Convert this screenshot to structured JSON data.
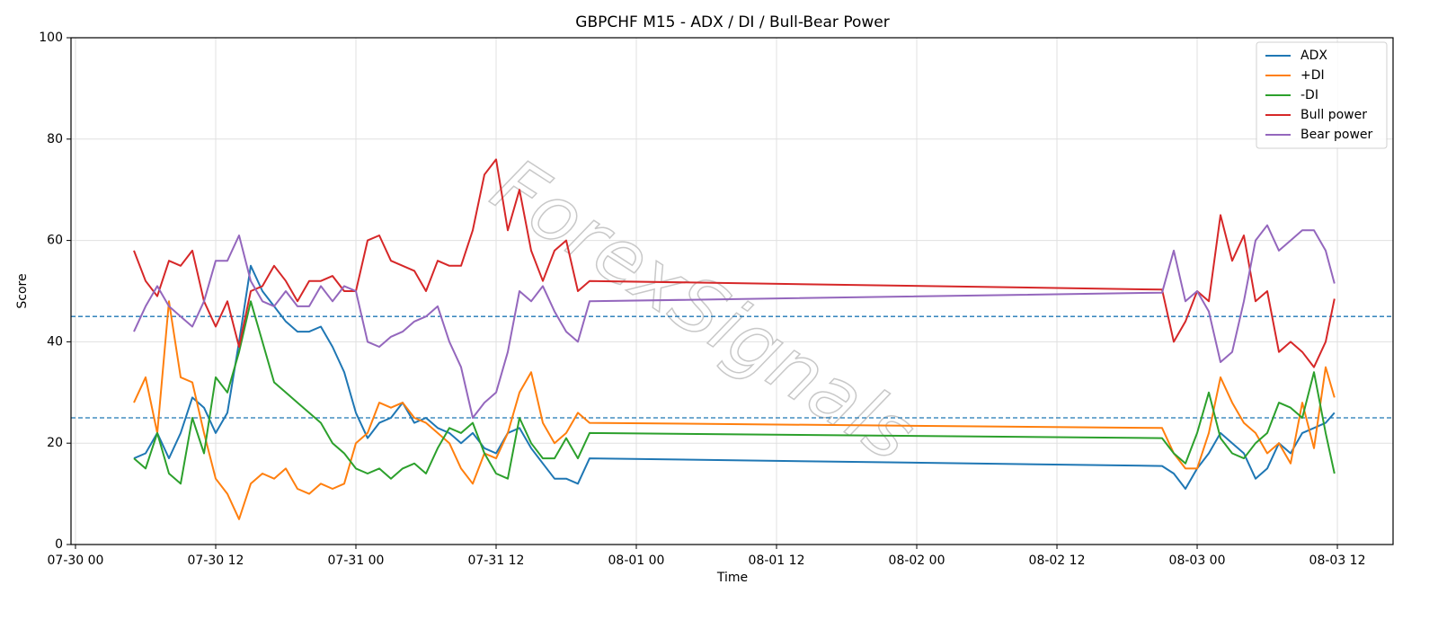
{
  "chart_data": {
    "type": "line",
    "title": "GBPCHF M15 - ADX / DI / Bull-Bear Power",
    "xlabel": "Time",
    "ylabel": "Score",
    "watermark": "ForexSignals",
    "x": [
      "07-30 05:00",
      "07-30 06:00",
      "07-30 07:00",
      "07-30 08:00",
      "07-30 09:00",
      "07-30 10:00",
      "07-30 11:00",
      "07-30 12:00",
      "07-30 13:00",
      "07-30 14:00",
      "07-30 15:00",
      "07-30 16:00",
      "07-30 17:00",
      "07-30 18:00",
      "07-30 19:00",
      "07-30 20:00",
      "07-30 21:00",
      "07-30 22:00",
      "07-30 23:00",
      "07-31 00:00",
      "07-31 01:00",
      "07-31 02:00",
      "07-31 03:00",
      "07-31 04:00",
      "07-31 05:00",
      "07-31 06:00",
      "07-31 07:00",
      "07-31 08:00",
      "07-31 09:00",
      "07-31 10:00",
      "07-31 11:00",
      "07-31 12:00",
      "07-31 13:00",
      "07-31 14:00",
      "07-31 15:00",
      "07-31 16:00",
      "07-31 17:00",
      "07-31 18:00",
      "07-31 19:00",
      "07-31 20:00",
      "08-02 21:00",
      "08-02 22:00",
      "08-02 23:00",
      "08-03 00:00",
      "08-03 01:00",
      "08-03 02:00",
      "08-03 03:00",
      "08-03 04:00",
      "08-03 05:00",
      "08-03 06:00",
      "08-03 07:00",
      "08-03 08:00",
      "08-03 09:00",
      "08-03 10:00",
      "08-03 11:00",
      "08-03 11:45"
    ],
    "series": [
      {
        "name": "ADX",
        "color": "#1f77b4",
        "values": [
          17,
          18,
          22,
          17,
          22,
          29,
          27,
          22,
          26,
          40,
          55,
          50,
          47,
          44,
          42,
          42,
          43,
          39,
          34,
          26,
          21,
          24,
          25,
          28,
          24,
          25,
          23,
          22,
          20,
          22,
          19,
          18,
          22,
          23,
          19,
          16,
          13,
          13,
          12,
          17,
          15.5,
          14,
          11,
          15,
          18,
          22,
          20,
          18,
          13,
          15,
          20,
          18,
          22,
          23,
          24,
          26
        ]
      },
      {
        "name": "+DI",
        "color": "#ff7f0e",
        "values": [
          28,
          33,
          22,
          48,
          33,
          32,
          22,
          13,
          10,
          5,
          12,
          14,
          13,
          15,
          11,
          10,
          12,
          11,
          12,
          20,
          22,
          28,
          27,
          28,
          25,
          24,
          22,
          20,
          15,
          12,
          18,
          17,
          22,
          30,
          34,
          24,
          20,
          22,
          26,
          24,
          23,
          18,
          15,
          15,
          22,
          33,
          28,
          24,
          22,
          18,
          20,
          16,
          28,
          19,
          35,
          29
        ]
      },
      {
        "name": "-DI",
        "color": "#2ca02c",
        "values": [
          17,
          15,
          22,
          14,
          12,
          25,
          18,
          33,
          30,
          38,
          48,
          40,
          32,
          30,
          28,
          26,
          24,
          20,
          18,
          15,
          14,
          15,
          13,
          15,
          16,
          14,
          19,
          23,
          22,
          24,
          18,
          14,
          13,
          25,
          20,
          17,
          17,
          21,
          17,
          22,
          21,
          18,
          16,
          22,
          30,
          21,
          18,
          17,
          20,
          22,
          28,
          27,
          25,
          34,
          22,
          14
        ]
      },
      {
        "name": "Bull power",
        "color": "#d62728",
        "values": [
          58,
          52,
          49,
          56,
          55,
          58,
          48,
          43,
          48,
          39,
          50,
          51,
          55,
          52,
          48,
          52,
          52,
          53,
          50,
          50,
          60,
          61,
          56,
          55,
          54,
          50,
          56,
          55,
          55,
          62,
          73,
          76,
          62,
          70,
          58,
          52,
          58,
          60,
          50,
          52,
          50.3,
          40,
          44,
          50,
          48,
          65,
          56,
          61,
          48,
          50,
          38,
          40,
          38,
          35,
          40,
          48.5
        ]
      },
      {
        "name": "Bear power",
        "color": "#9467bd",
        "values": [
          42,
          47,
          51,
          47,
          45,
          43,
          48,
          56,
          56,
          61,
          52,
          48,
          47,
          50,
          47,
          47,
          51,
          48,
          51,
          50,
          40,
          39,
          41,
          42,
          44,
          45,
          47,
          40,
          35,
          25,
          28,
          30,
          38,
          50,
          48,
          51,
          46,
          42,
          40,
          48,
          49.7,
          58,
          48,
          50,
          46,
          36,
          38,
          48,
          60,
          63,
          58,
          60,
          62,
          62,
          58,
          51.5
        ]
      }
    ],
    "hlines": [
      45,
      25
    ],
    "hline_color": "#1f77b4",
    "xlim": [
      "07-29 23:37",
      "08-03 16:46"
    ],
    "xticks": [
      "07-30 00",
      "07-30 12",
      "07-31 00",
      "07-31 12",
      "08-01 00",
      "08-01 12",
      "08-02 00",
      "08-02 12",
      "08-03 00",
      "08-03 12"
    ],
    "ylim": [
      0,
      100
    ],
    "yticks": [
      0,
      20,
      40,
      60,
      80,
      100
    ],
    "grid": true,
    "legend": "upper right"
  }
}
